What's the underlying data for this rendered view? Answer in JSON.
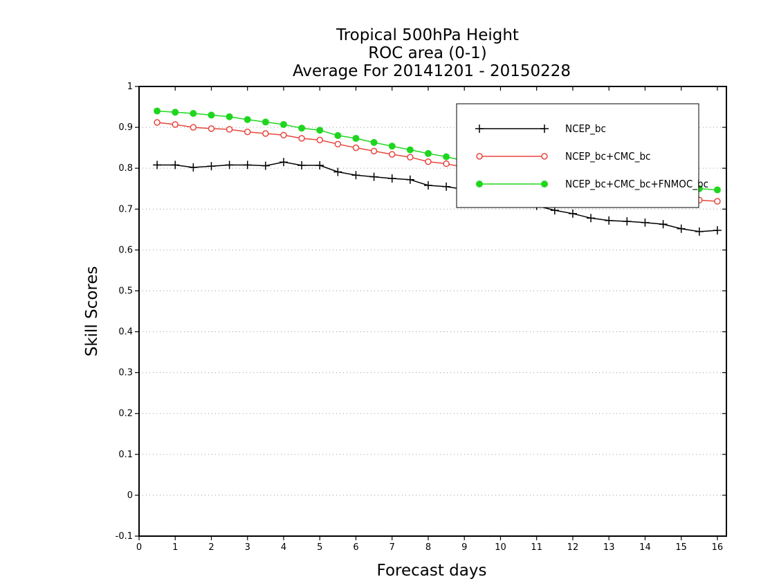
{
  "chart_data": {
    "type": "line",
    "title": [
      "Tropical 500hPa Height",
      "ROC area (0-1)",
      "Average For 20141201 - 20150228"
    ],
    "xlabel": "Forecast days",
    "ylabel": "Skill Scores",
    "xlim": [
      0,
      16.25
    ],
    "ylim": [
      -0.1,
      1
    ],
    "xticks": [
      0,
      1,
      2,
      3,
      4,
      5,
      6,
      7,
      8,
      9,
      10,
      11,
      12,
      13,
      14,
      15,
      16
    ],
    "yticks": [
      -0.1,
      0,
      0.1,
      0.2,
      0.3,
      0.4,
      0.5,
      0.6,
      0.7,
      0.8,
      0.9,
      1
    ],
    "ytick_labels": [
      "-0.1",
      "0",
      "0.1",
      "0.2",
      "0.3",
      "0.4",
      "0.5",
      "0.6",
      "0.7",
      "0.8",
      "0.9",
      "1"
    ],
    "grid": "horizontal dotted",
    "legend_position": "top-right",
    "x": [
      0.5,
      1,
      1.5,
      2,
      2.5,
      3,
      3.5,
      4,
      4.5,
      5,
      5.5,
      6,
      6.5,
      7,
      7.5,
      8,
      8.5,
      9,
      9.5,
      10,
      10.5,
      11,
      11.5,
      12,
      12.5,
      13,
      13.5,
      14,
      14.5,
      15,
      15.5,
      16
    ],
    "series": [
      {
        "name": "NCEP_bc",
        "color": "#000000",
        "marker": "plus",
        "values": [
          0.808,
          0.808,
          0.802,
          0.805,
          0.808,
          0.808,
          0.806,
          0.815,
          0.807,
          0.807,
          0.791,
          0.783,
          0.779,
          0.775,
          0.772,
          0.758,
          0.755,
          0.748,
          0.742,
          0.735,
          0.722,
          0.708,
          0.697,
          0.689,
          0.678,
          0.672,
          0.67,
          0.667,
          0.663,
          0.652,
          0.645,
          0.648
        ]
      },
      {
        "name": "NCEP_bc+CMC_bc",
        "color": "#e8453c",
        "marker": "open-circle",
        "values": [
          0.912,
          0.907,
          0.9,
          0.897,
          0.895,
          0.889,
          0.885,
          0.881,
          0.873,
          0.869,
          0.859,
          0.85,
          0.842,
          0.834,
          0.827,
          0.816,
          0.811,
          0.802,
          0.794,
          0.786,
          0.776,
          0.768,
          0.76,
          0.751,
          0.746,
          0.741,
          0.737,
          0.733,
          0.729,
          0.726,
          0.722,
          0.719
        ]
      },
      {
        "name": "NCEP_bc+CMC_bc+FNMOC_bc",
        "color": "#1fd61f",
        "marker": "filled-circle",
        "values": [
          0.94,
          0.937,
          0.934,
          0.93,
          0.926,
          0.919,
          0.913,
          0.907,
          0.898,
          0.893,
          0.88,
          0.873,
          0.863,
          0.854,
          0.845,
          0.836,
          0.828,
          0.818,
          0.81,
          0.801,
          0.794,
          0.786,
          0.779,
          0.772,
          0.767,
          0.763,
          0.759,
          0.756,
          0.753,
          0.752,
          0.75,
          0.747
        ]
      }
    ]
  }
}
